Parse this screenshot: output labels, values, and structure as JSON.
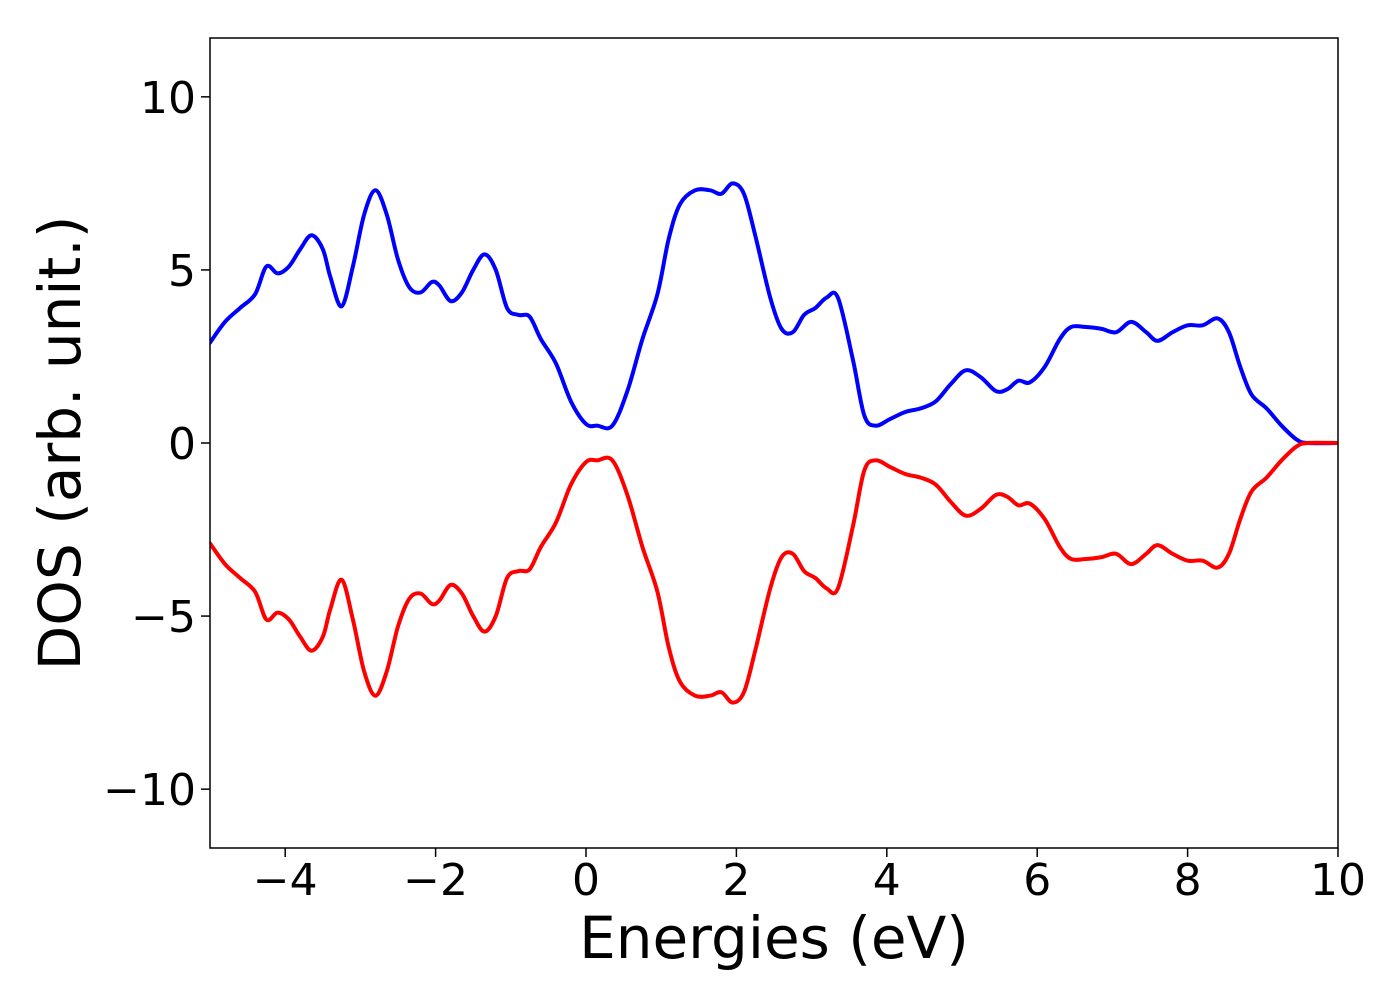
{
  "chart_data": {
    "type": "line",
    "xlabel": "Energies (eV)",
    "ylabel": "DOS (arb. unit.)",
    "xlim": [
      -5,
      10
    ],
    "ylim": [
      -11.7,
      11.7
    ],
    "xticks": [
      -4,
      -2,
      0,
      2,
      4,
      6,
      8,
      10
    ],
    "xtick_labels": [
      "−4",
      "−2",
      "0",
      "2",
      "4",
      "6",
      "8",
      "10"
    ],
    "yticks": [
      10,
      5,
      0,
      -5,
      -10
    ],
    "ytick_labels": [
      "10",
      "5",
      "0",
      "−5",
      "−10"
    ],
    "grid": false,
    "legend": "none",
    "series": [
      {
        "color": "#0000ff",
        "points": [
          [
            -5.0,
            2.9
          ],
          [
            -4.8,
            3.5
          ],
          [
            -4.6,
            3.9
          ],
          [
            -4.4,
            4.3
          ],
          [
            -4.25,
            5.1
          ],
          [
            -4.1,
            4.9
          ],
          [
            -3.95,
            5.1
          ],
          [
            -3.8,
            5.6
          ],
          [
            -3.65,
            6.0
          ],
          [
            -3.5,
            5.6
          ],
          [
            -3.4,
            4.8
          ],
          [
            -3.25,
            3.95
          ],
          [
            -3.1,
            5.1
          ],
          [
            -2.95,
            6.6
          ],
          [
            -2.8,
            7.3
          ],
          [
            -2.65,
            6.6
          ],
          [
            -2.5,
            5.3
          ],
          [
            -2.35,
            4.5
          ],
          [
            -2.2,
            4.35
          ],
          [
            -2.05,
            4.65
          ],
          [
            -1.95,
            4.55
          ],
          [
            -1.8,
            4.1
          ],
          [
            -1.65,
            4.35
          ],
          [
            -1.5,
            5.0
          ],
          [
            -1.35,
            5.45
          ],
          [
            -1.2,
            5.0
          ],
          [
            -1.05,
            3.9
          ],
          [
            -0.9,
            3.7
          ],
          [
            -0.75,
            3.65
          ],
          [
            -0.6,
            3.0
          ],
          [
            -0.4,
            2.3
          ],
          [
            -0.2,
            1.2
          ],
          [
            0.0,
            0.55
          ],
          [
            0.15,
            0.5
          ],
          [
            0.35,
            0.5
          ],
          [
            0.55,
            1.5
          ],
          [
            0.75,
            3.0
          ],
          [
            0.95,
            4.3
          ],
          [
            1.1,
            5.9
          ],
          [
            1.25,
            6.9
          ],
          [
            1.45,
            7.3
          ],
          [
            1.65,
            7.3
          ],
          [
            1.8,
            7.2
          ],
          [
            1.95,
            7.5
          ],
          [
            2.1,
            7.2
          ],
          [
            2.25,
            6.0
          ],
          [
            2.45,
            4.2
          ],
          [
            2.6,
            3.3
          ],
          [
            2.75,
            3.2
          ],
          [
            2.9,
            3.7
          ],
          [
            3.05,
            3.9
          ],
          [
            3.2,
            4.2
          ],
          [
            3.35,
            4.2
          ],
          [
            3.55,
            2.4
          ],
          [
            3.7,
            0.8
          ],
          [
            3.85,
            0.5
          ],
          [
            4.05,
            0.7
          ],
          [
            4.25,
            0.9
          ],
          [
            4.45,
            1.0
          ],
          [
            4.65,
            1.2
          ],
          [
            4.85,
            1.7
          ],
          [
            5.05,
            2.1
          ],
          [
            5.25,
            1.9
          ],
          [
            5.45,
            1.5
          ],
          [
            5.6,
            1.55
          ],
          [
            5.75,
            1.8
          ],
          [
            5.9,
            1.75
          ],
          [
            6.1,
            2.2
          ],
          [
            6.3,
            3.0
          ],
          [
            6.45,
            3.35
          ],
          [
            6.65,
            3.35
          ],
          [
            6.85,
            3.3
          ],
          [
            7.05,
            3.2
          ],
          [
            7.25,
            3.5
          ],
          [
            7.45,
            3.2
          ],
          [
            7.6,
            2.95
          ],
          [
            7.8,
            3.2
          ],
          [
            8.0,
            3.4
          ],
          [
            8.2,
            3.4
          ],
          [
            8.4,
            3.6
          ],
          [
            8.55,
            3.2
          ],
          [
            8.7,
            2.2
          ],
          [
            8.85,
            1.4
          ],
          [
            9.05,
            1.0
          ],
          [
            9.25,
            0.5
          ],
          [
            9.45,
            0.1
          ],
          [
            9.6,
            0.0
          ],
          [
            10.0,
            0.0
          ]
        ]
      },
      {
        "color": "#ff0000",
        "points": [
          [
            -5.0,
            -2.9
          ],
          [
            -4.8,
            -3.5
          ],
          [
            -4.6,
            -3.9
          ],
          [
            -4.4,
            -4.3
          ],
          [
            -4.25,
            -5.1
          ],
          [
            -4.1,
            -4.9
          ],
          [
            -3.95,
            -5.1
          ],
          [
            -3.8,
            -5.6
          ],
          [
            -3.65,
            -6.0
          ],
          [
            -3.5,
            -5.6
          ],
          [
            -3.4,
            -4.8
          ],
          [
            -3.25,
            -3.95
          ],
          [
            -3.1,
            -5.1
          ],
          [
            -2.95,
            -6.6
          ],
          [
            -2.8,
            -7.3
          ],
          [
            -2.65,
            -6.6
          ],
          [
            -2.5,
            -5.3
          ],
          [
            -2.35,
            -4.5
          ],
          [
            -2.2,
            -4.35
          ],
          [
            -2.05,
            -4.65
          ],
          [
            -1.95,
            -4.55
          ],
          [
            -1.8,
            -4.1
          ],
          [
            -1.65,
            -4.35
          ],
          [
            -1.5,
            -5.0
          ],
          [
            -1.35,
            -5.45
          ],
          [
            -1.2,
            -5.0
          ],
          [
            -1.05,
            -3.9
          ],
          [
            -0.9,
            -3.7
          ],
          [
            -0.75,
            -3.65
          ],
          [
            -0.6,
            -3.0
          ],
          [
            -0.4,
            -2.3
          ],
          [
            -0.2,
            -1.2
          ],
          [
            0.0,
            -0.55
          ],
          [
            0.15,
            -0.5
          ],
          [
            0.35,
            -0.5
          ],
          [
            0.55,
            -1.5
          ],
          [
            0.75,
            -3.0
          ],
          [
            0.95,
            -4.3
          ],
          [
            1.1,
            -5.9
          ],
          [
            1.25,
            -6.9
          ],
          [
            1.45,
            -7.3
          ],
          [
            1.65,
            -7.3
          ],
          [
            1.8,
            -7.2
          ],
          [
            1.95,
            -7.5
          ],
          [
            2.1,
            -7.2
          ],
          [
            2.25,
            -6.0
          ],
          [
            2.45,
            -4.2
          ],
          [
            2.6,
            -3.3
          ],
          [
            2.75,
            -3.2
          ],
          [
            2.9,
            -3.7
          ],
          [
            3.05,
            -3.9
          ],
          [
            3.2,
            -4.2
          ],
          [
            3.35,
            -4.2
          ],
          [
            3.55,
            -2.4
          ],
          [
            3.7,
            -0.8
          ],
          [
            3.85,
            -0.5
          ],
          [
            4.05,
            -0.7
          ],
          [
            4.25,
            -0.9
          ],
          [
            4.45,
            -1.0
          ],
          [
            4.65,
            -1.2
          ],
          [
            4.85,
            -1.7
          ],
          [
            5.05,
            -2.1
          ],
          [
            5.25,
            -1.9
          ],
          [
            5.45,
            -1.5
          ],
          [
            5.6,
            -1.55
          ],
          [
            5.75,
            -1.8
          ],
          [
            5.9,
            -1.75
          ],
          [
            6.1,
            -2.2
          ],
          [
            6.3,
            -3.0
          ],
          [
            6.45,
            -3.35
          ],
          [
            6.65,
            -3.35
          ],
          [
            6.85,
            -3.3
          ],
          [
            7.05,
            -3.2
          ],
          [
            7.25,
            -3.5
          ],
          [
            7.45,
            -3.2
          ],
          [
            7.6,
            -2.95
          ],
          [
            7.8,
            -3.2
          ],
          [
            8.0,
            -3.4
          ],
          [
            8.2,
            -3.4
          ],
          [
            8.4,
            -3.6
          ],
          [
            8.55,
            -3.2
          ],
          [
            8.7,
            -2.2
          ],
          [
            8.85,
            -1.4
          ],
          [
            9.05,
            -1.0
          ],
          [
            9.25,
            -0.5
          ],
          [
            9.45,
            -0.1
          ],
          [
            9.6,
            0.0
          ],
          [
            10.0,
            0.0
          ]
        ]
      }
    ]
  }
}
